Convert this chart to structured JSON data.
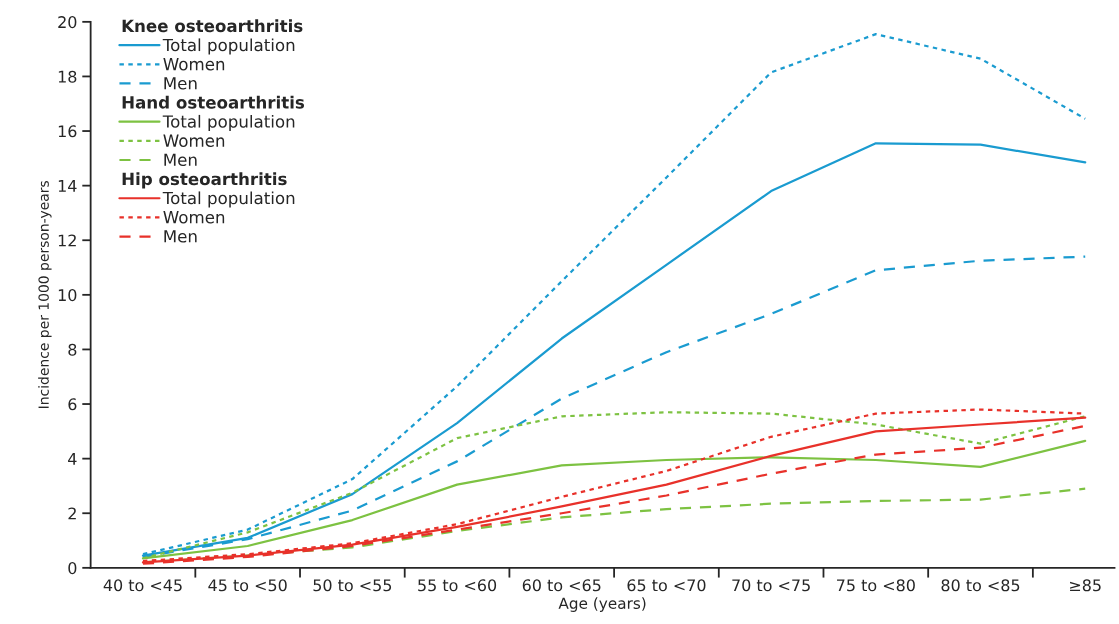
{
  "chart_data": {
    "type": "line",
    "xlabel": "Age (years)",
    "ylabel": "Incidence per 1000 person-years",
    "categories": [
      "40 to <45",
      "45 to <50",
      "50 to <55",
      "55 to <60",
      "60 to <65",
      "65 to <70",
      "70 to <75",
      "75 to <80",
      "80 to <85",
      "≥85"
    ],
    "ylim": [
      0,
      20
    ],
    "yticks": [
      0,
      2,
      4,
      6,
      8,
      10,
      12,
      14,
      16,
      18,
      20
    ],
    "grid": false,
    "legend": "top left",
    "marker": "none",
    "annotations": [
      "Knee osteoarthritis",
      "Hand osteoarthritis",
      "Hip osteoarthritis"
    ],
    "series": [
      {
        "name": "Total population",
        "color": "#1a9bd0",
        "line_style": "solid",
        "values": [
          0.45,
          1.1,
          2.7,
          5.3,
          8.4,
          11.1,
          13.8,
          15.55,
          15.5,
          14.85
        ]
      },
      {
        "name": "Women",
        "color": "#1a9bd0",
        "line_style": "dotted",
        "values": [
          0.5,
          1.4,
          3.25,
          6.65,
          10.5,
          14.3,
          18.15,
          19.55,
          18.65,
          16.45
        ]
      },
      {
        "name": "Men",
        "color": "#1a9bd0",
        "line_style": "dashed",
        "values": [
          0.4,
          1.05,
          2.1,
          3.9,
          6.2,
          7.9,
          9.3,
          10.9,
          11.25,
          11.4
        ]
      },
      {
        "name": "Total population",
        "color": "#7dc242",
        "line_style": "solid",
        "values": [
          0.35,
          0.8,
          1.75,
          3.05,
          3.75,
          3.95,
          4.05,
          3.95,
          3.7,
          4.65
        ]
      },
      {
        "name": "Women",
        "color": "#7dc242",
        "line_style": "dotted",
        "values": [
          0.35,
          1.3,
          2.75,
          4.75,
          5.55,
          5.7,
          5.65,
          5.25,
          4.55,
          5.55
        ]
      },
      {
        "name": "Men",
        "color": "#7dc242",
        "line_style": "dashed",
        "values": [
          0.2,
          0.45,
          0.75,
          1.35,
          1.85,
          2.15,
          2.35,
          2.45,
          2.5,
          2.9
        ]
      },
      {
        "name": "Total population",
        "color": "#e8312a",
        "line_style": "solid",
        "values": [
          0.2,
          0.45,
          0.85,
          1.5,
          2.25,
          3.05,
          4.1,
          5.0,
          5.25,
          5.5
        ]
      },
      {
        "name": "Women",
        "color": "#e8312a",
        "line_style": "dotted",
        "values": [
          0.25,
          0.5,
          0.9,
          1.6,
          2.6,
          3.55,
          4.8,
          5.65,
          5.8,
          5.65
        ]
      },
      {
        "name": "Men",
        "color": "#e8312a",
        "line_style": "dashed",
        "values": [
          0.15,
          0.4,
          0.8,
          1.4,
          2.0,
          2.65,
          3.45,
          4.15,
          4.4,
          5.2
        ]
      }
    ]
  }
}
